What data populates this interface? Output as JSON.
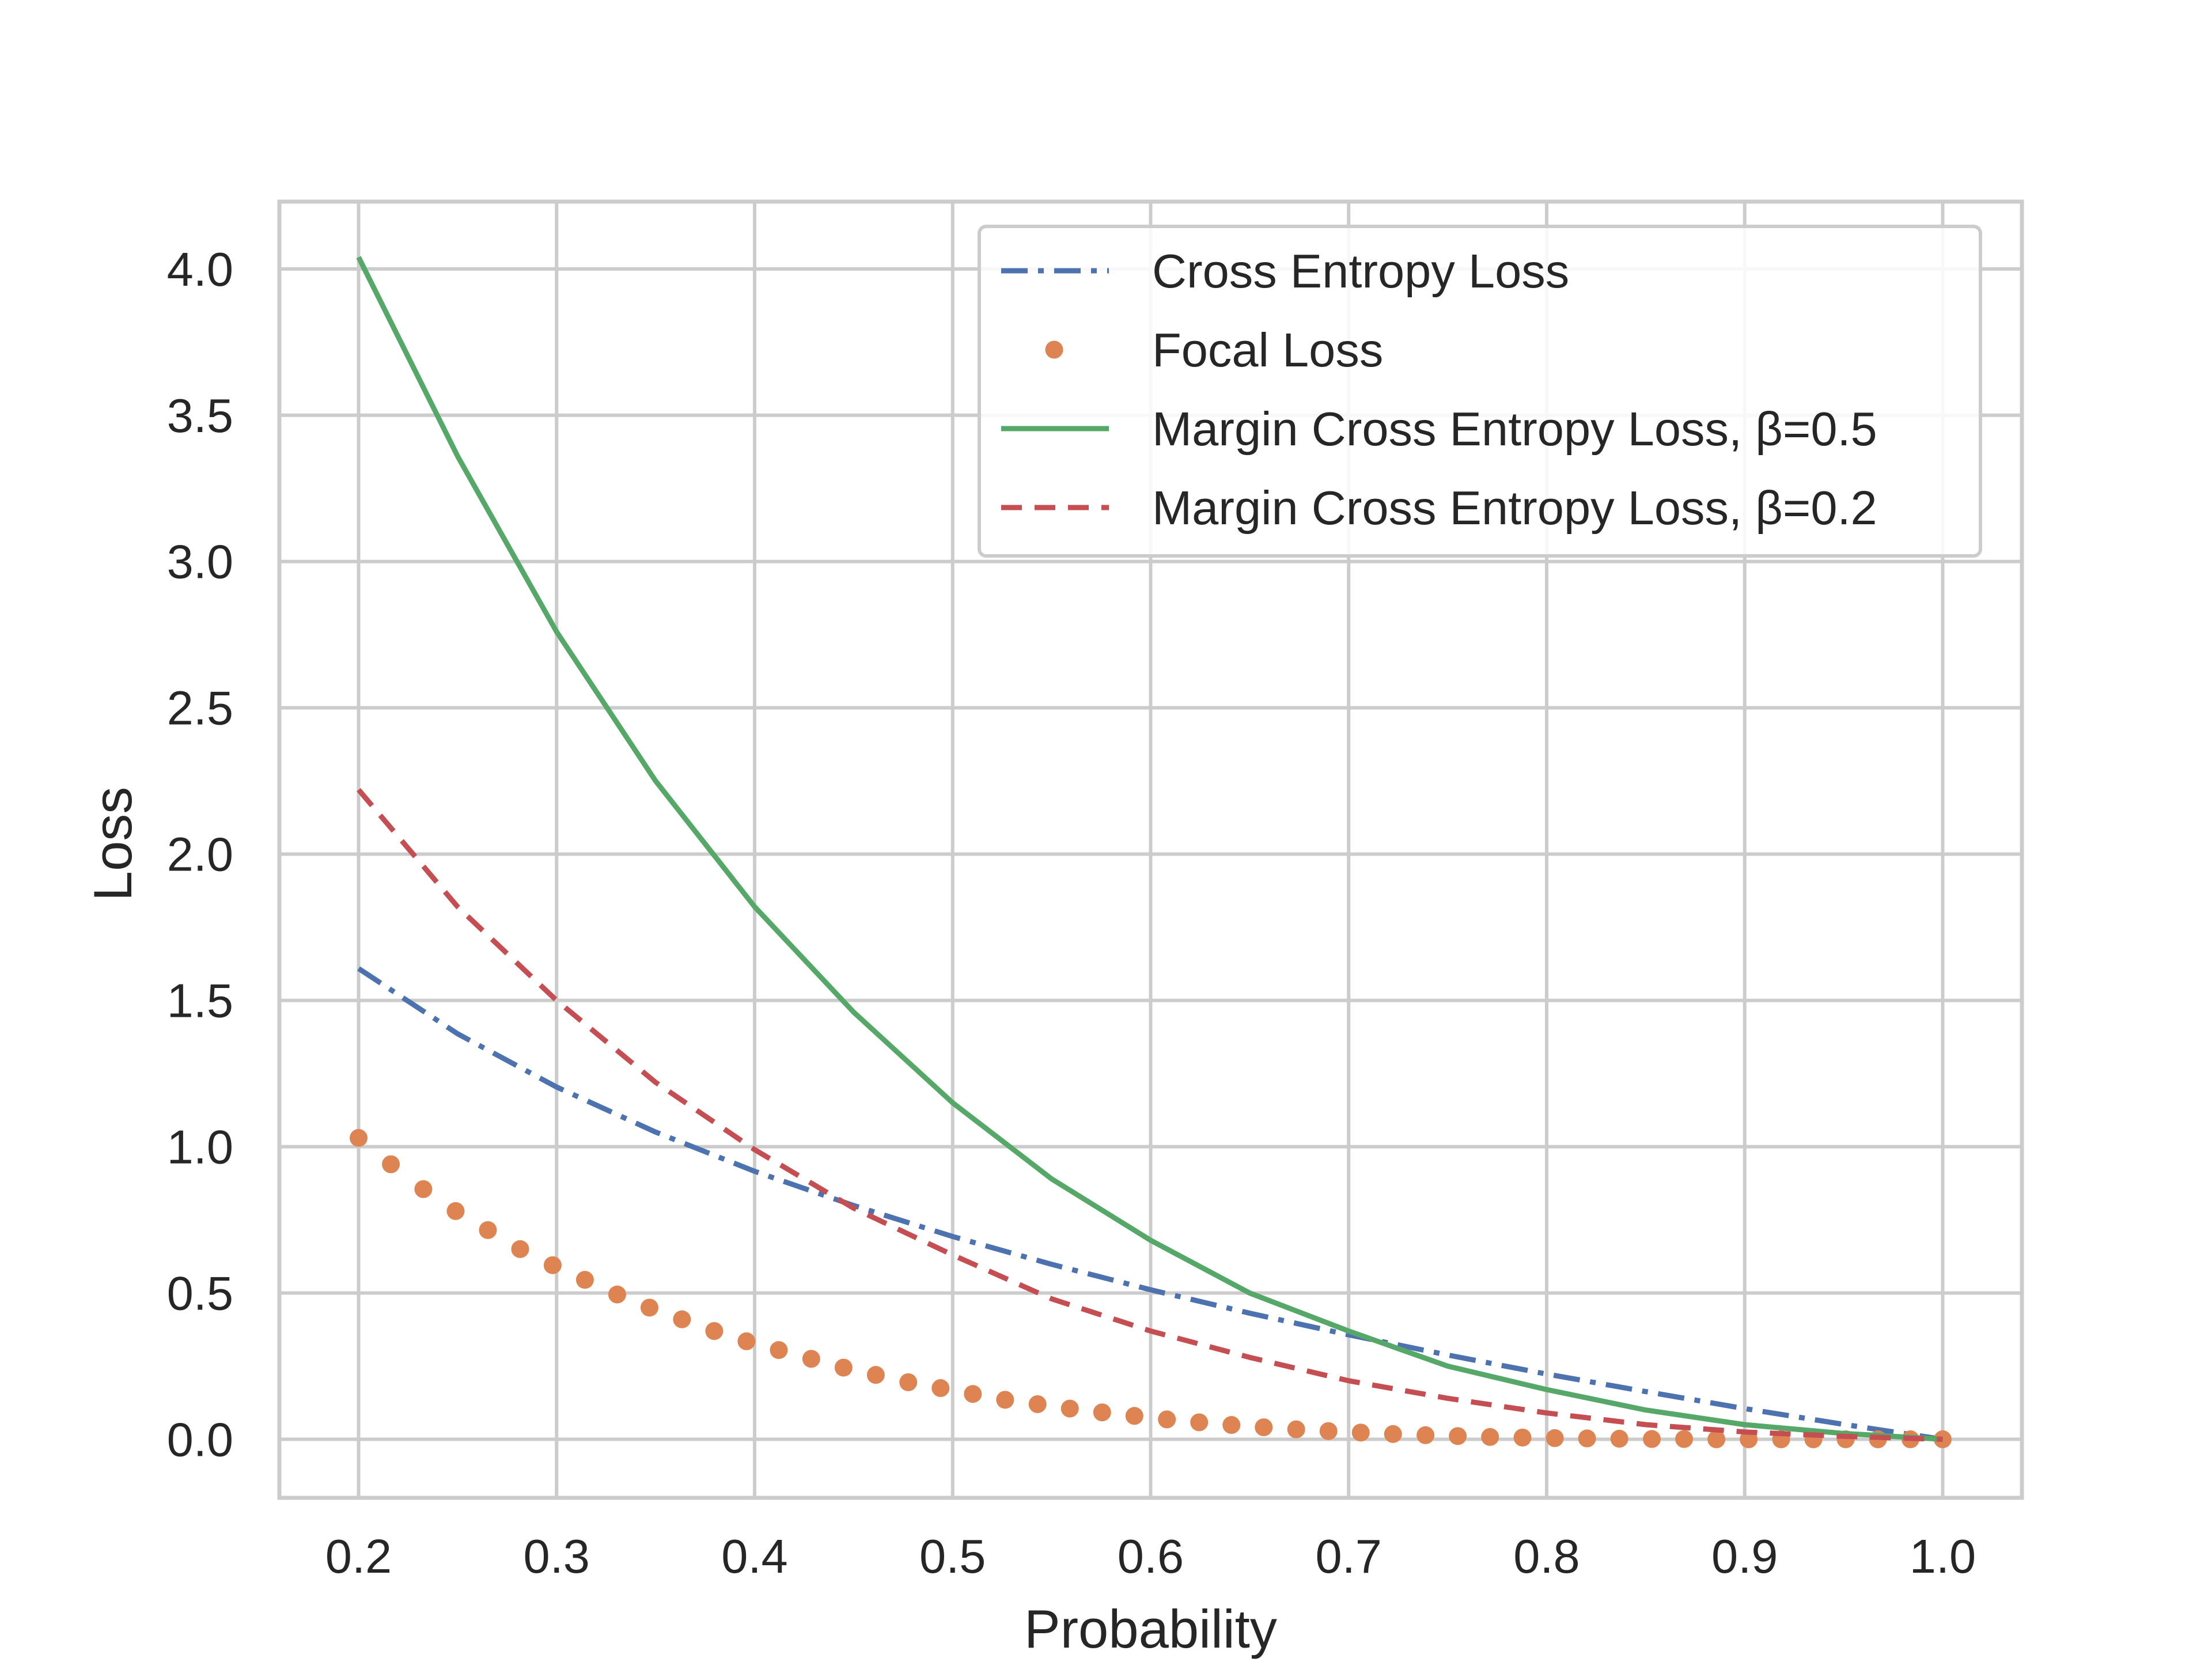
{
  "chart_data": {
    "type": "line",
    "xlabel": "Probability",
    "ylabel": "Loss",
    "xlim": [
      0.16,
      1.04
    ],
    "ylim": [
      -0.2,
      4.23
    ],
    "xticks": [
      0.2,
      0.3,
      0.4,
      0.5,
      0.6,
      0.7,
      0.8,
      0.9,
      1.0
    ],
    "xtick_labels": [
      "0.2",
      "0.3",
      "0.4",
      "0.5",
      "0.6",
      "0.7",
      "0.8",
      "0.9",
      "1.0"
    ],
    "yticks": [
      0.0,
      0.5,
      1.0,
      1.5,
      2.0,
      2.5,
      3.0,
      3.5,
      4.0
    ],
    "ytick_labels": [
      "0.0",
      "0.5",
      "1.0",
      "1.5",
      "2.0",
      "2.5",
      "3.0",
      "3.5",
      "4.0"
    ],
    "grid": true,
    "legend_position": "top-right",
    "series": [
      {
        "name": "Cross Entropy Loss",
        "color": "#4c72b0",
        "style": "dashdot",
        "x": [
          0.2,
          0.25,
          0.3,
          0.35,
          0.4,
          0.45,
          0.5,
          0.55,
          0.6,
          0.65,
          0.7,
          0.75,
          0.8,
          0.85,
          0.9,
          0.95,
          1.0
        ],
        "y": [
          1.609,
          1.386,
          1.204,
          1.05,
          0.916,
          0.799,
          0.693,
          0.598,
          0.511,
          0.431,
          0.357,
          0.288,
          0.223,
          0.163,
          0.105,
          0.051,
          0.0
        ]
      },
      {
        "name": "Focal Loss",
        "color": "#dd8452",
        "style": "dotted",
        "x": [
          0.2,
          0.2163,
          0.2327,
          0.249,
          0.2653,
          0.2816,
          0.298,
          0.3143,
          0.3306,
          0.3469,
          0.3633,
          0.3796,
          0.3959,
          0.4122,
          0.4286,
          0.4449,
          0.4612,
          0.4776,
          0.4939,
          0.5102,
          0.5265,
          0.5429,
          0.5592,
          0.5755,
          0.5918,
          0.6082,
          0.6245,
          0.6408,
          0.6571,
          0.6735,
          0.6898,
          0.7061,
          0.7224,
          0.7388,
          0.7551,
          0.7714,
          0.7878,
          0.8041,
          0.8204,
          0.8367,
          0.8531,
          0.8694,
          0.8857,
          0.902,
          0.9184,
          0.9347,
          0.951,
          0.9673,
          0.9837,
          1.0
        ],
        "y": [
          1.03,
          0.94,
          0.855,
          0.78,
          0.715,
          0.65,
          0.595,
          0.545,
          0.495,
          0.45,
          0.41,
          0.37,
          0.335,
          0.305,
          0.275,
          0.245,
          0.22,
          0.195,
          0.175,
          0.155,
          0.135,
          0.12,
          0.105,
          0.092,
          0.08,
          0.068,
          0.058,
          0.049,
          0.041,
          0.034,
          0.028,
          0.023,
          0.018,
          0.014,
          0.011,
          0.008,
          0.006,
          0.004,
          0.003,
          0.002,
          0.001,
          0.001,
          0.0,
          0.0,
          0.0,
          0.0,
          0.0,
          0.0,
          0.0,
          0.0
        ]
      },
      {
        "name": "Margin Cross Entropy Loss, β=0.5",
        "color": "#55a868",
        "style": "solid",
        "x": [
          0.2,
          0.25,
          0.3,
          0.35,
          0.4,
          0.45,
          0.5,
          0.55,
          0.6,
          0.65,
          0.7,
          0.75,
          0.8,
          0.85,
          0.9,
          0.95,
          1.0
        ],
        "y": [
          4.04,
          3.36,
          2.76,
          2.25,
          1.82,
          1.46,
          1.15,
          0.89,
          0.68,
          0.5,
          0.37,
          0.25,
          0.17,
          0.1,
          0.05,
          0.02,
          0.0
        ]
      },
      {
        "name": "Margin Cross Entropy Loss, β=0.2",
        "color": "#c44e52",
        "style": "dashed",
        "x": [
          0.2,
          0.25,
          0.3,
          0.35,
          0.4,
          0.45,
          0.5,
          0.55,
          0.6,
          0.65,
          0.7,
          0.75,
          0.8,
          0.85,
          0.9,
          0.95,
          1.0
        ],
        "y": [
          2.22,
          1.82,
          1.5,
          1.22,
          0.99,
          0.79,
          0.63,
          0.48,
          0.37,
          0.28,
          0.2,
          0.14,
          0.09,
          0.05,
          0.025,
          0.01,
          0.0
        ]
      }
    ]
  }
}
